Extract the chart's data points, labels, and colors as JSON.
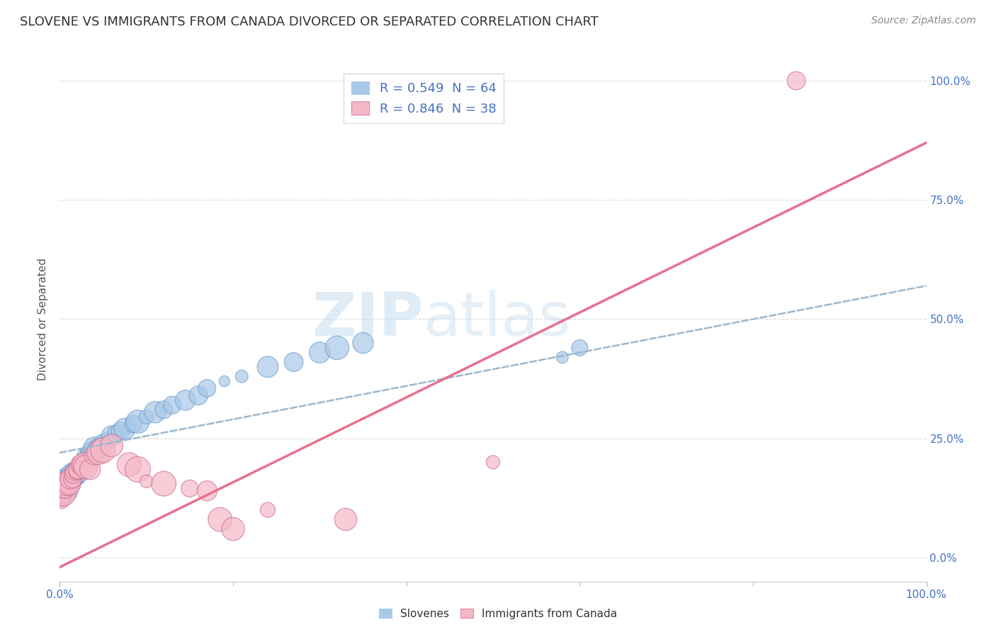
{
  "title": "SLOVENE VS IMMIGRANTS FROM CANADA DIVORCED OR SEPARATED CORRELATION CHART",
  "source": "Source: ZipAtlas.com",
  "ylabel": "Divorced or Separated",
  "xlabel": "",
  "xlim": [
    0,
    1
  ],
  "ylim": [
    -0.05,
    1.05
  ],
  "x_tick_labels": [
    "0.0%",
    "100.0%"
  ],
  "y_tick_labels_right": [
    "0.0%",
    "25.0%",
    "50.0%",
    "75.0%",
    "100.0%"
  ],
  "legend_label1": "R = 0.549  N = 64",
  "legend_label2": "R = 0.846  N = 38",
  "color_blue": "#a8c8e8",
  "color_pink": "#f4b8c8",
  "watermark_zip": "ZIP",
  "watermark_atlas": "atlas",
  "watermark_color": "#c8dff0",
  "background_color": "#ffffff",
  "grid_color": "#cccccc",
  "title_fontsize": 13,
  "axis_label_fontsize": 11,
  "tick_fontsize": 11,
  "source_fontsize": 10,
  "blue_line_x": [
    0.0,
    1.0
  ],
  "blue_line_y": [
    0.22,
    0.57
  ],
  "pink_line_x": [
    0.0,
    1.0
  ],
  "pink_line_y": [
    -0.02,
    0.87
  ],
  "blue_scatter_x": [
    0.001,
    0.002,
    0.003,
    0.004,
    0.004,
    0.005,
    0.005,
    0.006,
    0.006,
    0.007,
    0.007,
    0.008,
    0.009,
    0.009,
    0.01,
    0.01,
    0.011,
    0.012,
    0.013,
    0.014,
    0.015,
    0.016,
    0.016,
    0.017,
    0.018,
    0.019,
    0.02,
    0.022,
    0.025,
    0.027,
    0.028,
    0.03,
    0.032,
    0.034,
    0.036,
    0.038,
    0.04,
    0.042,
    0.045,
    0.048,
    0.05,
    0.055,
    0.06,
    0.065,
    0.07,
    0.075,
    0.085,
    0.09,
    0.1,
    0.11,
    0.12,
    0.13,
    0.145,
    0.16,
    0.17,
    0.19,
    0.21,
    0.24,
    0.27,
    0.3,
    0.32,
    0.35,
    0.58,
    0.6
  ],
  "blue_scatter_y": [
    0.15,
    0.13,
    0.14,
    0.15,
    0.16,
    0.14,
    0.155,
    0.145,
    0.16,
    0.15,
    0.155,
    0.14,
    0.155,
    0.165,
    0.16,
    0.155,
    0.165,
    0.155,
    0.17,
    0.165,
    0.17,
    0.175,
    0.16,
    0.17,
    0.175,
    0.165,
    0.175,
    0.18,
    0.19,
    0.195,
    0.2,
    0.21,
    0.205,
    0.215,
    0.22,
    0.22,
    0.23,
    0.225,
    0.23,
    0.235,
    0.24,
    0.245,
    0.255,
    0.26,
    0.265,
    0.27,
    0.28,
    0.285,
    0.295,
    0.305,
    0.31,
    0.32,
    0.33,
    0.34,
    0.355,
    0.37,
    0.38,
    0.4,
    0.41,
    0.43,
    0.44,
    0.45,
    0.42,
    0.44
  ],
  "pink_scatter_x": [
    0.001,
    0.002,
    0.003,
    0.004,
    0.005,
    0.006,
    0.007,
    0.008,
    0.009,
    0.01,
    0.011,
    0.012,
    0.014,
    0.015,
    0.016,
    0.017,
    0.019,
    0.021,
    0.024,
    0.028,
    0.03,
    0.035,
    0.04,
    0.045,
    0.05,
    0.06,
    0.08,
    0.09,
    0.1,
    0.12,
    0.15,
    0.17,
    0.185,
    0.2,
    0.24,
    0.33,
    0.5,
    0.85
  ],
  "pink_scatter_y": [
    0.13,
    0.12,
    0.14,
    0.135,
    0.15,
    0.145,
    0.155,
    0.15,
    0.16,
    0.155,
    0.155,
    0.165,
    0.17,
    0.165,
    0.175,
    0.18,
    0.18,
    0.185,
    0.195,
    0.195,
    0.19,
    0.185,
    0.215,
    0.22,
    0.225,
    0.235,
    0.195,
    0.185,
    0.16,
    0.155,
    0.145,
    0.14,
    0.08,
    0.06,
    0.1,
    0.08,
    0.2,
    1.0
  ]
}
